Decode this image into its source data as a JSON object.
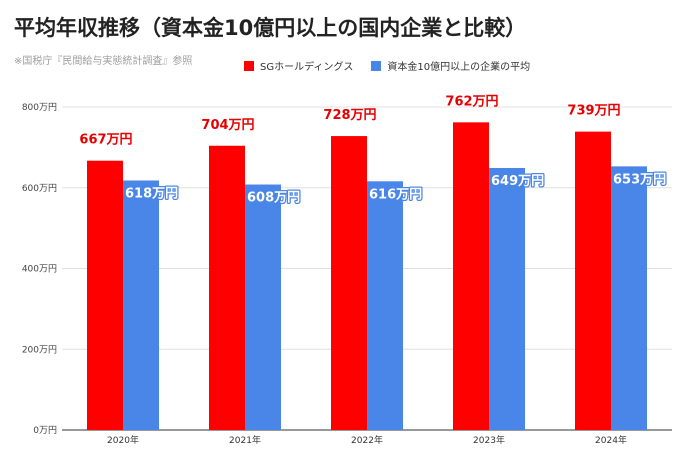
{
  "header": {
    "title": "平均年収推移（資本金10億円以上の国内企業と比較）",
    "source": "※国税庁『民間給与実態統計調査』参照"
  },
  "colors": {
    "series_a": "#ff0000",
    "series_b": "#4a86e8",
    "label_a": "#e60000"
  },
  "chart_data": {
    "type": "bar",
    "categories": [
      "2020年",
      "2021年",
      "2022年",
      "2023年",
      "2024年"
    ],
    "series": [
      {
        "name": "SGホールディングス",
        "values": [
          667,
          704,
          728,
          762,
          739
        ],
        "labels": [
          "667万円",
          "704万円",
          "728万円",
          "762万円",
          "739万円"
        ]
      },
      {
        "name": "資本金10億円以上の企業の平均",
        "values": [
          618,
          608,
          616,
          649,
          653
        ],
        "labels": [
          "618万円",
          "608万円",
          "616万円",
          "649万円",
          "653万円"
        ]
      }
    ],
    "yticks": [
      0,
      200,
      400,
      600,
      800
    ],
    "ytick_labels": [
      "0万円",
      "200万円",
      "400万円",
      "600万円",
      "800万円"
    ],
    "ylim": [
      0,
      800
    ],
    "grid": true,
    "legend_position": "top"
  }
}
